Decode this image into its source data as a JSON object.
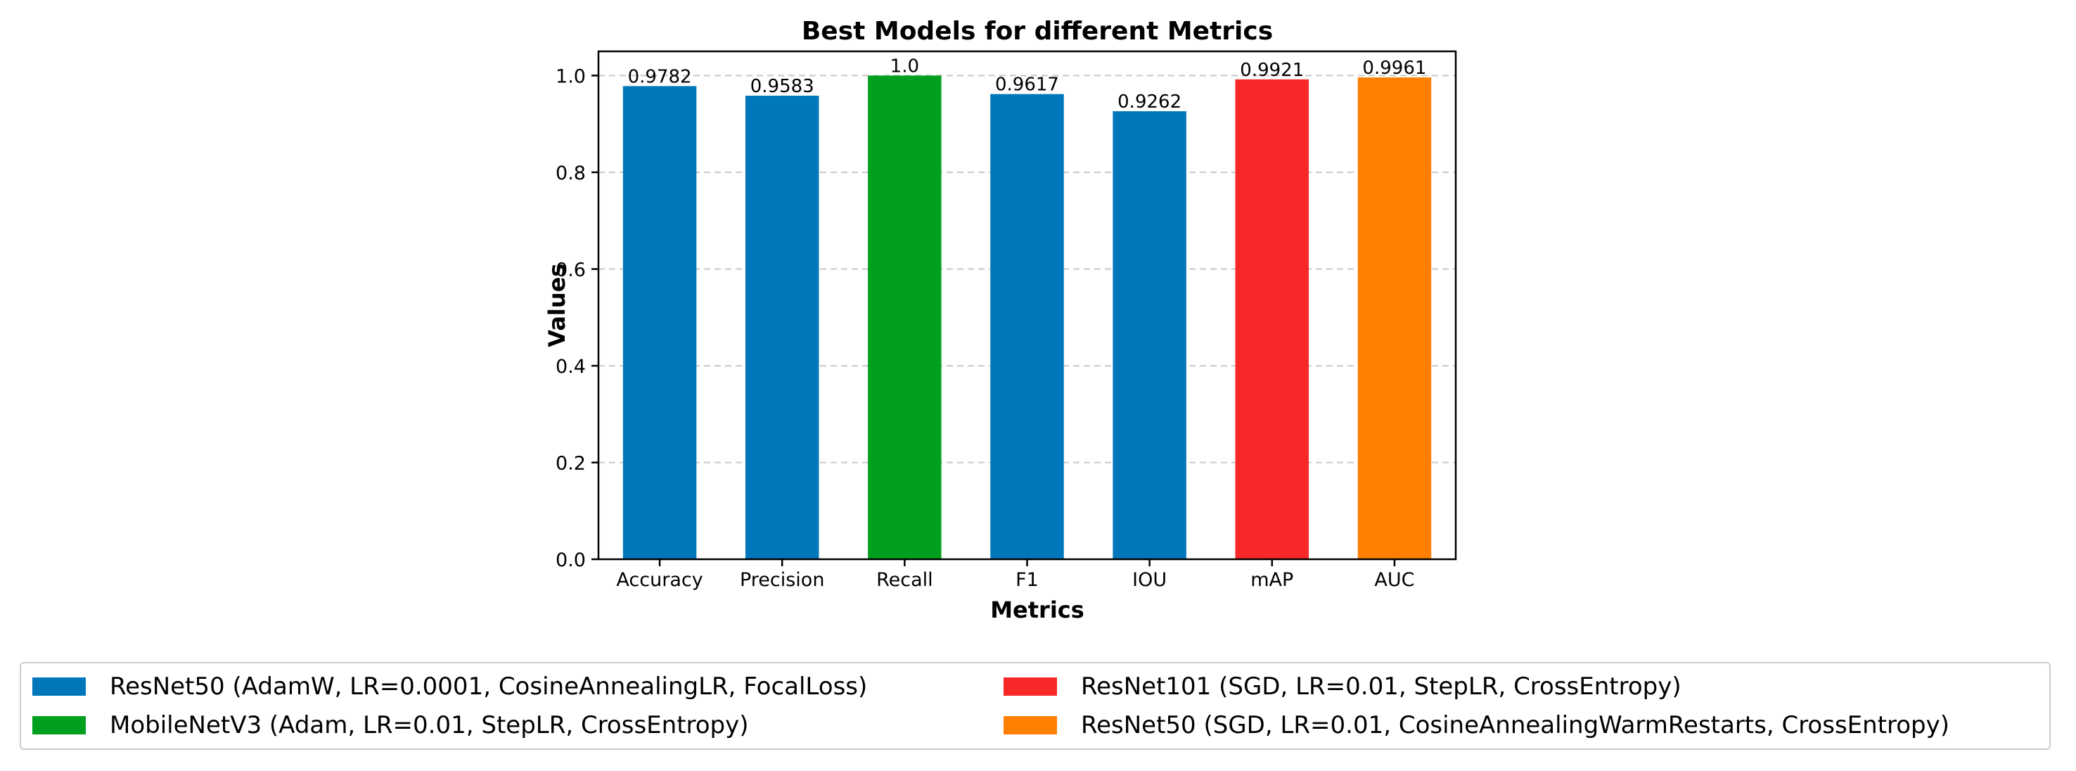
{
  "chart_data": {
    "type": "bar",
    "title": "Best Models for different Metrics",
    "xlabel": "Metrics",
    "ylabel": "Values",
    "ylim": [
      0,
      1.05
    ],
    "yticks": [
      0.0,
      0.2,
      0.4,
      0.6,
      0.8,
      1.0
    ],
    "ytick_labels": [
      "0.0",
      "0.2",
      "0.4",
      "0.6",
      "0.8",
      "1.0"
    ],
    "grid": "y-dashed",
    "categories": [
      "Accuracy",
      "Precision",
      "Recall",
      "F1",
      "IOU",
      "mAP",
      "AUC"
    ],
    "values": [
      0.9782,
      0.9583,
      1.0,
      0.9617,
      0.9262,
      0.9921,
      0.9961
    ],
    "value_labels": [
      "0.9782",
      "0.9583",
      "1.0",
      "0.9617",
      "0.9262",
      "0.9921",
      "0.9961"
    ],
    "bar_colors": [
      "#0077bb",
      "#0077bb",
      "#00a01e",
      "#0077bb",
      "#0077bb",
      "#f82828",
      "#ff8000"
    ],
    "legend_placement": "bottom",
    "legend": [
      {
        "label": "ResNet50 (AdamW, LR=0.0001, CosineAnnealingLR, FocalLoss)",
        "color": "#0077bb"
      },
      {
        "label": "MobileNetV3 (Adam, LR=0.01, StepLR, CrossEntropy)",
        "color": "#00a01e"
      },
      {
        "label": "ResNet101 (SGD, LR=0.01, StepLR, CrossEntropy)",
        "color": "#f82828"
      },
      {
        "label": "ResNet50 (SGD, LR=0.01, CosineAnnealingWarmRestarts, CrossEntropy)",
        "color": "#ff8000"
      }
    ]
  }
}
